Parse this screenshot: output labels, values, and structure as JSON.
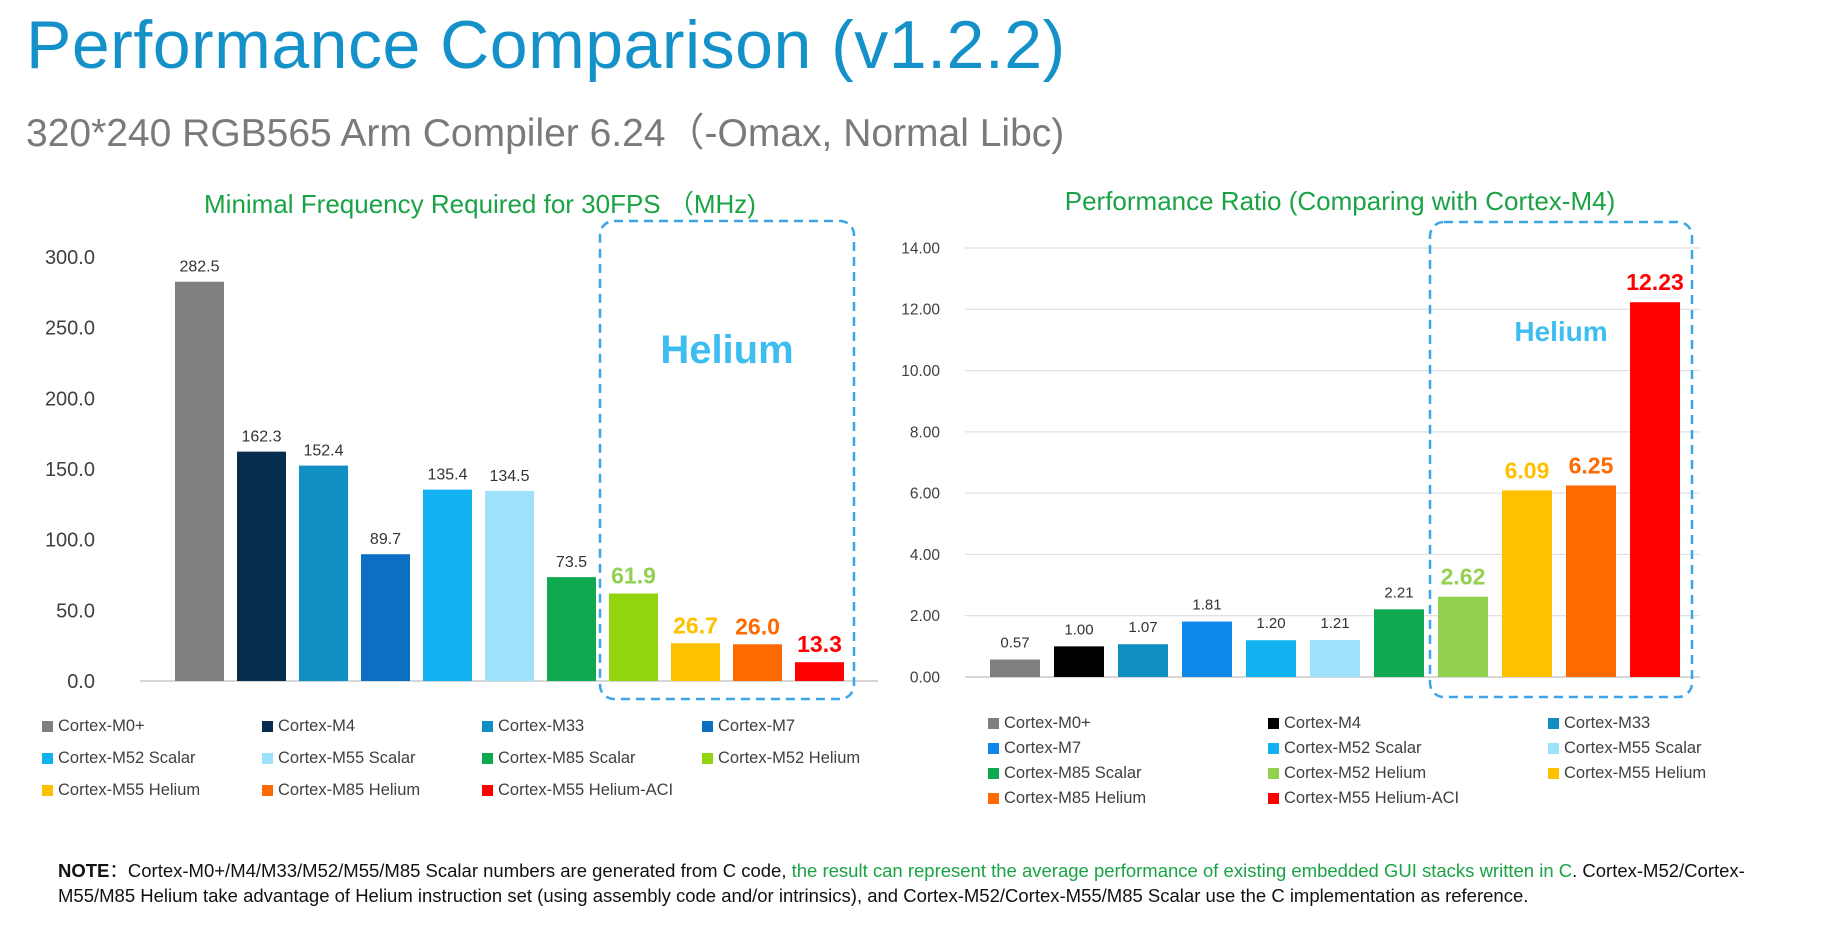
{
  "header": {
    "title": "Performance Comparison (v1.2.2)",
    "subtitle": "320*240 RGB565 Arm Compiler 6.24（-Omax, Normal Libc)"
  },
  "colors": {
    "title": "#1591c9",
    "subtitle": "#7a7a7a",
    "chart_title": "#1aa345",
    "helium_box": "#3aa6e8",
    "helium_label": "#3dbdf0"
  },
  "chart_data": [
    {
      "type": "bar",
      "title": "Minimal Frequency Required for 30FPS （MHz)",
      "annotation": "Helium",
      "ylim": [
        0,
        300
      ],
      "yticks": [
        "300.0",
        "250.0",
        "200.0",
        "150.0",
        "100.0",
        "50.0",
        "0.0"
      ],
      "ytick_values": [
        300,
        250,
        200,
        150,
        100,
        50,
        0
      ],
      "grid": false,
      "legend_position": "bottom",
      "series": [
        {
          "name": "Cortex-M0+",
          "value": 282.5,
          "label": "282.5",
          "color": "#7f7f7f",
          "label_color": "#333333",
          "label_bold": false
        },
        {
          "name": "Cortex-M4",
          "value": 162.3,
          "label": "162.3",
          "color": "#062d4e",
          "label_color": "#333333",
          "label_bold": false
        },
        {
          "name": "Cortex-M33",
          "value": 152.4,
          "label": "152.4",
          "color": "#0f8fc2",
          "label_color": "#333333",
          "label_bold": false
        },
        {
          "name": "Cortex-M7",
          "value": 89.7,
          "label": "89.7",
          "color": "#0b6fc3",
          "label_color": "#333333",
          "label_bold": false
        },
        {
          "name": "Cortex-M52 Scalar",
          "value": 135.4,
          "label": "135.4",
          "color": "#12b2f0",
          "label_color": "#333333",
          "label_bold": false
        },
        {
          "name": "Cortex-M55 Scalar",
          "value": 134.5,
          "label": "134.5",
          "color": "#9ee1fb",
          "label_color": "#333333",
          "label_bold": false
        },
        {
          "name": "Cortex-M85 Scalar",
          "value": 73.5,
          "label": "73.5",
          "color": "#0faa50",
          "label_color": "#333333",
          "label_bold": false
        },
        {
          "name": "Cortex-M52 Helium",
          "value": 61.9,
          "label": "61.9",
          "color": "#92d40d",
          "label_color": "#92d14f",
          "label_bold": true
        },
        {
          "name": "Cortex-M55 Helium",
          "value": 26.7,
          "label": "26.7",
          "color": "#ffc000",
          "label_color": "#ffc000",
          "label_bold": true
        },
        {
          "name": "Cortex-M85 Helium",
          "value": 26.0,
          "label": "26.0",
          "color": "#ff6a00",
          "label_color": "#ff6a00",
          "label_bold": true
        },
        {
          "name": "Cortex-M55 Helium-ACI",
          "value": 13.3,
          "label": "13.3",
          "color": "#ff0000",
          "label_color": "#ff0000",
          "label_bold": true
        }
      ]
    },
    {
      "type": "bar",
      "title": "Performance Ratio (Comparing with Cortex-M4)",
      "annotation": "Helium",
      "ylim": [
        0,
        14
      ],
      "yticks": [
        "14.00",
        "12.00",
        "10.00",
        "8.00",
        "6.00",
        "4.00",
        "2.00",
        "0.00"
      ],
      "ytick_values": [
        14,
        12,
        10,
        8,
        6,
        4,
        2,
        0
      ],
      "grid": true,
      "legend_position": "bottom",
      "series": [
        {
          "name": "Cortex-M0+",
          "value": 0.57,
          "label": "0.57",
          "color": "#7f7f7f",
          "label_color": "#333333",
          "label_bold": false
        },
        {
          "name": "Cortex-M4",
          "value": 1.0,
          "label": "1.00",
          "color": "#000000",
          "label_color": "#333333",
          "label_bold": false
        },
        {
          "name": "Cortex-M33",
          "value": 1.07,
          "label": "1.07",
          "color": "#0f8fc2",
          "label_color": "#333333",
          "label_bold": false
        },
        {
          "name": "Cortex-M7",
          "value": 1.81,
          "label": "1.81",
          "color": "#0e88ea",
          "label_color": "#333333",
          "label_bold": false
        },
        {
          "name": "Cortex-M52 Scalar",
          "value": 1.2,
          "label": "1.20",
          "color": "#12b2f0",
          "label_color": "#333333",
          "label_bold": false
        },
        {
          "name": "Cortex-M55 Scalar",
          "value": 1.21,
          "label": "1.21",
          "color": "#9ee1fb",
          "label_color": "#333333",
          "label_bold": false
        },
        {
          "name": "Cortex-M85 Scalar",
          "value": 2.21,
          "label": "2.21",
          "color": "#0faa50",
          "label_color": "#333333",
          "label_bold": false
        },
        {
          "name": "Cortex-M52 Helium",
          "value": 2.62,
          "label": "2.62",
          "color": "#92d14f",
          "label_color": "#92d14f",
          "label_bold": true
        },
        {
          "name": "Cortex-M55 Helium",
          "value": 6.09,
          "label": "6.09",
          "color": "#ffc000",
          "label_color": "#ffc000",
          "label_bold": true
        },
        {
          "name": "Cortex-M85 Helium",
          "value": 6.25,
          "label": "6.25",
          "color": "#ff6a00",
          "label_color": "#ff6a00",
          "label_bold": true
        },
        {
          "name": "Cortex-M55 Helium-ACI",
          "value": 12.23,
          "label": "12.23",
          "color": "#ff0000",
          "label_color": "#ff0000",
          "label_bold": true
        }
      ]
    }
  ],
  "note": {
    "key": "NOTE",
    "sep": "：",
    "text1": "Cortex-M0+/M4/M33/M52/M55/M85 Scalar numbers are generated from C code, ",
    "highlight": "the result can represent the average performance of existing embedded GUI stacks written in C",
    "text2": ". Cortex-M52/Cortex-M55/M85 Helium take advantage of Helium instruction set (using assembly code and/or intrinsics), and Cortex-M52/Cortex-M55/M85 Scalar use the C implementation as reference."
  }
}
